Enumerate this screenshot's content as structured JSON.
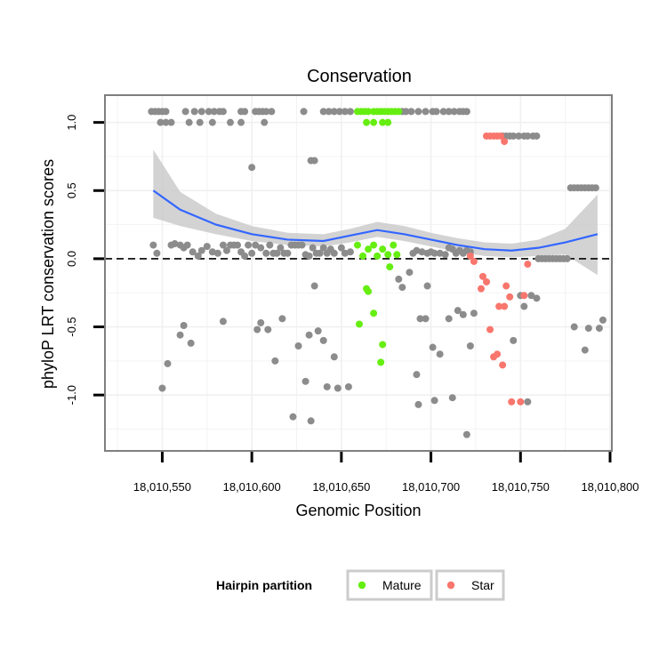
{
  "chart_data": {
    "type": "scatter",
    "title": "Conservation",
    "xlabel": "Genomic Position",
    "ylabel": "phyloP LRT conservation scores",
    "xlim": [
      18010518,
      18010801
    ],
    "ylim": [
      -1.41,
      1.2
    ],
    "x_ticks": [
      18010550,
      18010600,
      18010650,
      18010700,
      18010750,
      18010800
    ],
    "x_tick_labels": [
      "18,010,550",
      "18,010,600",
      "18,010,650",
      "18,010,700",
      "18,010,750",
      "18,010,800"
    ],
    "y_ticks": [
      -1.0,
      -0.5,
      0.0,
      0.5,
      1.0
    ],
    "y_tick_labels": [
      "-1.0",
      "-0.5",
      "0.0",
      "0.5",
      "1.0"
    ],
    "reference_line": {
      "y": 0,
      "style": "dashed"
    },
    "grid": true,
    "legend": {
      "title": "Hairpin partition",
      "position": "bottom",
      "entries": [
        {
          "label": "Mature",
          "color": "#66ee11"
        },
        {
          "label": "Star",
          "color": "#f8766d"
        }
      ]
    },
    "colors": {
      "other": "#8c8c8c",
      "mature": "#66ee11",
      "star": "#f8766d",
      "smooth": "#3366ff",
      "ribbon": "#c8c8c8"
    },
    "smooth": {
      "x": [
        18010545,
        18010560,
        18010580,
        18010600,
        18010620,
        18010640,
        18010655,
        18010670,
        18010685,
        18010700,
        18010715,
        18010730,
        18010745,
        18010760,
        18010775,
        18010793
      ],
      "y": [
        0.5,
        0.36,
        0.25,
        0.18,
        0.14,
        0.13,
        0.17,
        0.21,
        0.18,
        0.14,
        0.1,
        0.07,
        0.06,
        0.08,
        0.12,
        0.18
      ],
      "lower": [
        0.3,
        0.24,
        0.18,
        0.13,
        0.1,
        0.09,
        0.12,
        0.16,
        0.13,
        0.09,
        0.05,
        0.02,
        0.01,
        0.02,
        0.03,
        -0.12
      ],
      "upper": [
        0.8,
        0.49,
        0.33,
        0.24,
        0.19,
        0.18,
        0.22,
        0.27,
        0.24,
        0.19,
        0.15,
        0.12,
        0.11,
        0.14,
        0.22,
        0.47
      ]
    },
    "series": [
      {
        "name": "Other",
        "color": "#8c8c8c",
        "points": [
          [
            18010544,
            1.08
          ],
          [
            18010546,
            1.08
          ],
          [
            18010548,
            1.08
          ],
          [
            18010550,
            1.08
          ],
          [
            18010552,
            1.08
          ],
          [
            18010549,
            1.0
          ],
          [
            18010552,
            1.0
          ],
          [
            18010555,
            1.0
          ],
          [
            18010563,
            1.08
          ],
          [
            18010565,
            1.0
          ],
          [
            18010568,
            1.08
          ],
          [
            18010572,
            1.08
          ],
          [
            18010571,
            1.0
          ],
          [
            18010576,
            1.08
          ],
          [
            18010579,
            1.08
          ],
          [
            18010582,
            1.08
          ],
          [
            18010584,
            1.08
          ],
          [
            18010578,
            1.0
          ],
          [
            18010588,
            1.0
          ],
          [
            18010594,
            1.08
          ],
          [
            18010596,
            1.08
          ],
          [
            18010594,
            1.0
          ],
          [
            18010602,
            1.08
          ],
          [
            18010604,
            1.08
          ],
          [
            18010606,
            1.08
          ],
          [
            18010608,
            1.08
          ],
          [
            18010611,
            1.08
          ],
          [
            18010607,
            1.0
          ],
          [
            18010629,
            1.08
          ],
          [
            18010640,
            1.08
          ],
          [
            18010643,
            1.08
          ],
          [
            18010646,
            1.08
          ],
          [
            18010649,
            1.08
          ],
          [
            18010652,
            1.08
          ],
          [
            18010655,
            1.08
          ],
          [
            18010684,
            1.08
          ],
          [
            18010686,
            1.08
          ],
          [
            18010689,
            1.08
          ],
          [
            18010693,
            1.08
          ],
          [
            18010697,
            1.08
          ],
          [
            18010701,
            1.08
          ],
          [
            18010703,
            1.08
          ],
          [
            18010707,
            1.08
          ],
          [
            18010710,
            1.08
          ],
          [
            18010713,
            1.08
          ],
          [
            18010716,
            1.08
          ],
          [
            18010718,
            1.08
          ],
          [
            18010720,
            1.08
          ],
          [
            18010740,
            0.9
          ],
          [
            18010742,
            0.9
          ],
          [
            18010744,
            0.9
          ],
          [
            18010746,
            0.9
          ],
          [
            18010749,
            0.9
          ],
          [
            18010752,
            0.9
          ],
          [
            18010754,
            0.9
          ],
          [
            18010757,
            0.9
          ],
          [
            18010759,
            0.9
          ],
          [
            18010600,
            0.67
          ],
          [
            18010633,
            0.72
          ],
          [
            18010635,
            0.72
          ],
          [
            18010778,
            0.52
          ],
          [
            18010780,
            0.52
          ],
          [
            18010782,
            0.52
          ],
          [
            18010784,
            0.52
          ],
          [
            18010786,
            0.52
          ],
          [
            18010788,
            0.52
          ],
          [
            18010790,
            0.52
          ],
          [
            18010792,
            0.52
          ],
          [
            18010545,
            0.1
          ],
          [
            18010547,
            0.04
          ],
          [
            18010555,
            0.1
          ],
          [
            18010557,
            0.11
          ],
          [
            18010560,
            0.1
          ],
          [
            18010562,
            0.08
          ],
          [
            18010564,
            0.1
          ],
          [
            18010567,
            0.05
          ],
          [
            18010570,
            0.02
          ],
          [
            18010572,
            0.06
          ],
          [
            18010575,
            0.09
          ],
          [
            18010578,
            0.05
          ],
          [
            18010581,
            0.04
          ],
          [
            18010584,
            0.1
          ],
          [
            18010586,
            0.06
          ],
          [
            18010588,
            0.1
          ],
          [
            18010590,
            0.1
          ],
          [
            18010592,
            0.1
          ],
          [
            18010594,
            0.05
          ],
          [
            18010596,
            0.02
          ],
          [
            18010598,
            0.1
          ],
          [
            18010600,
            0.04
          ],
          [
            18010602,
            0.1
          ],
          [
            18010605,
            0.08
          ],
          [
            18010608,
            0.04
          ],
          [
            18010610,
            0.1
          ],
          [
            18010612,
            0.04
          ],
          [
            18010614,
            0.04
          ],
          [
            18010616,
            0.08
          ],
          [
            18010618,
            0.04
          ],
          [
            18010620,
            0.04
          ],
          [
            18010622,
            0.1
          ],
          [
            18010624,
            0.1
          ],
          [
            18010626,
            0.1
          ],
          [
            18010628,
            0.1
          ],
          [
            18010630,
            0.03
          ],
          [
            18010632,
            0.02
          ],
          [
            18010634,
            0.08
          ],
          [
            18010636,
            0.04
          ],
          [
            18010638,
            0.04
          ],
          [
            18010640,
            0.08
          ],
          [
            18010642,
            0.04
          ],
          [
            18010644,
            0.07
          ],
          [
            18010646,
            0.04
          ],
          [
            18010650,
            0.08
          ],
          [
            18010652,
            0.04
          ],
          [
            18010655,
            0.05
          ],
          [
            18010690,
            0.04
          ],
          [
            18010692,
            0.06
          ],
          [
            18010695,
            0.05
          ],
          [
            18010698,
            0.04
          ],
          [
            18010700,
            0.05
          ],
          [
            18010702,
            0.04
          ],
          [
            18010705,
            0.04
          ],
          [
            18010708,
            0.03
          ],
          [
            18010710,
            0.08
          ],
          [
            18010712,
            0.07
          ],
          [
            18010714,
            0.04
          ],
          [
            18010716,
            0.06
          ],
          [
            18010718,
            0.04
          ],
          [
            18010720,
            0.06
          ],
          [
            18010722,
            0.05
          ],
          [
            18010760,
            0.0
          ],
          [
            18010762,
            0.0
          ],
          [
            18010764,
            0.0
          ],
          [
            18010766,
            0.0
          ],
          [
            18010768,
            0.0
          ],
          [
            18010770,
            0.0
          ],
          [
            18010772,
            0.0
          ],
          [
            18010774,
            0.0
          ],
          [
            18010776,
            0.0
          ],
          [
            18010550,
            -0.95
          ],
          [
            18010553,
            -0.77
          ],
          [
            18010560,
            -0.56
          ],
          [
            18010562,
            -0.49
          ],
          [
            18010566,
            -0.62
          ],
          [
            18010584,
            -0.46
          ],
          [
            18010603,
            -0.52
          ],
          [
            18010605,
            -0.47
          ],
          [
            18010609,
            -0.52
          ],
          [
            18010613,
            -0.75
          ],
          [
            18010617,
            -0.44
          ],
          [
            18010623,
            -1.16
          ],
          [
            18010626,
            -0.64
          ],
          [
            18010630,
            -0.9
          ],
          [
            18010632,
            -0.56
          ],
          [
            18010633,
            -1.19
          ],
          [
            18010635,
            -0.2
          ],
          [
            18010637,
            -0.53
          ],
          [
            18010640,
            -0.6
          ],
          [
            18010642,
            -0.94
          ],
          [
            18010646,
            -0.72
          ],
          [
            18010648,
            -0.95
          ],
          [
            18010654,
            -0.94
          ],
          [
            18010682,
            -0.15
          ],
          [
            18010684,
            -0.21
          ],
          [
            18010688,
            -0.1
          ],
          [
            18010692,
            -0.85
          ],
          [
            18010693,
            -1.07
          ],
          [
            18010694,
            -0.44
          ],
          [
            18010697,
            -0.44
          ],
          [
            18010698,
            -0.2
          ],
          [
            18010701,
            -0.65
          ],
          [
            18010702,
            -1.04
          ],
          [
            18010705,
            -0.7
          ],
          [
            18010710,
            -0.44
          ],
          [
            18010712,
            -1.02
          ],
          [
            18010715,
            -0.38
          ],
          [
            18010718,
            -0.41
          ],
          [
            18010720,
            -1.29
          ],
          [
            18010722,
            -0.64
          ],
          [
            18010724,
            -0.4
          ],
          [
            18010746,
            -0.6
          ],
          [
            18010750,
            -0.27
          ],
          [
            18010752,
            -0.35
          ],
          [
            18010754,
            -1.05
          ],
          [
            18010756,
            -0.27
          ],
          [
            18010759,
            -0.29
          ],
          [
            18010780,
            -0.5
          ],
          [
            18010786,
            -0.67
          ],
          [
            18010788,
            -0.51
          ],
          [
            18010794,
            -0.51
          ],
          [
            18010796,
            -0.45
          ]
        ]
      },
      {
        "name": "Mature",
        "color": "#66ee11",
        "points": [
          [
            18010659,
            1.08
          ],
          [
            18010661,
            1.08
          ],
          [
            18010663,
            1.08
          ],
          [
            18010665,
            1.08
          ],
          [
            18010668,
            1.08
          ],
          [
            18010670,
            1.08
          ],
          [
            18010672,
            1.08
          ],
          [
            18010674,
            1.08
          ],
          [
            18010676,
            1.08
          ],
          [
            18010678,
            1.08
          ],
          [
            18010680,
            1.08
          ],
          [
            18010682,
            1.08
          ],
          [
            18010664,
            1.0
          ],
          [
            18010668,
            1.0
          ],
          [
            18010673,
            1.0
          ],
          [
            18010676,
            1.0
          ],
          [
            18010659,
            0.1
          ],
          [
            18010662,
            0.02
          ],
          [
            18010665,
            0.07
          ],
          [
            18010668,
            0.1
          ],
          [
            18010670,
            0.02
          ],
          [
            18010673,
            0.07
          ],
          [
            18010676,
            0.03
          ],
          [
            18010679,
            0.1
          ],
          [
            18010681,
            0.03
          ],
          [
            18010664,
            -0.22
          ],
          [
            18010665,
            -0.24
          ],
          [
            18010668,
            -0.4
          ],
          [
            18010673,
            -0.63
          ],
          [
            18010677,
            -0.06
          ],
          [
            18010660,
            -0.48
          ],
          [
            18010672,
            -0.76
          ]
        ]
      },
      {
        "name": "Star",
        "color": "#f8766d",
        "points": [
          [
            18010731,
            0.9
          ],
          [
            18010733,
            0.9
          ],
          [
            18010735,
            0.9
          ],
          [
            18010737,
            0.9
          ],
          [
            18010739,
            0.9
          ],
          [
            18010741,
            0.86
          ],
          [
            18010722,
            0.02
          ],
          [
            18010724,
            -0.02
          ],
          [
            18010728,
            -0.22
          ],
          [
            18010729,
            -0.13
          ],
          [
            18010731,
            -0.17
          ],
          [
            18010733,
            -0.52
          ],
          [
            18010735,
            -0.72
          ],
          [
            18010737,
            -0.7
          ],
          [
            18010738,
            -0.35
          ],
          [
            18010740,
            -0.78
          ],
          [
            18010741,
            -0.35
          ],
          [
            18010742,
            -0.2
          ],
          [
            18010744,
            -0.28
          ],
          [
            18010745,
            -1.05
          ],
          [
            18010750,
            -1.05
          ],
          [
            18010752,
            -0.27
          ],
          [
            18010754,
            -0.04
          ]
        ]
      }
    ]
  }
}
